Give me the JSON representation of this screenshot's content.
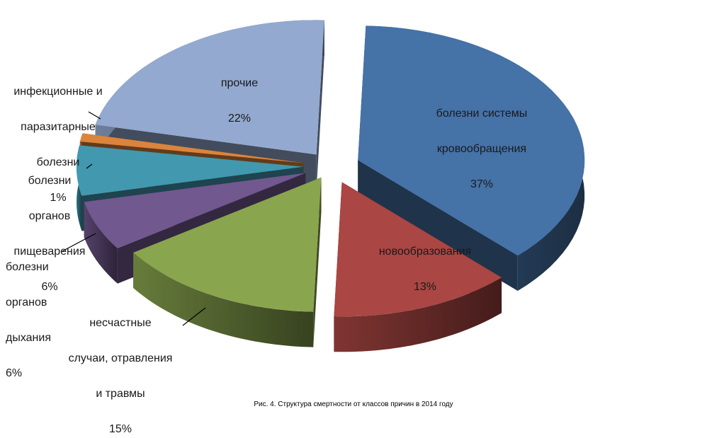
{
  "chart_data": {
    "type": "pie",
    "exploded": true,
    "three_d": true,
    "categories": [
      "болезни системы кровообращения",
      "новообразования",
      "несчастные случаи, отравления и травмы",
      "болезни органов дыхания",
      "болезни органов пищеварения",
      "инфекционные и паразитарные болезни",
      "прочие"
    ],
    "values": [
      37,
      13,
      15,
      6,
      6,
      1,
      22
    ],
    "percent_labels": [
      "37%",
      "13%",
      "15%",
      "6%",
      "6%",
      "1%",
      "22%"
    ],
    "colors": [
      "#4572a7",
      "#aa4643",
      "#89a54e",
      "#71588f",
      "#4198af",
      "#db843d",
      "#93a9cf"
    ],
    "label_lines": [
      [
        "болезни системы",
        "кровообращения"
      ],
      [
        "новообразования"
      ],
      [
        "несчастные",
        "случаи, отравления",
        "и травмы"
      ],
      [
        "болезни",
        "органов",
        "дыхания"
      ],
      [
        "болезни",
        "органов",
        "пищеварения"
      ],
      [
        "инфекционные и",
        "паразитарные",
        "болезни"
      ],
      [
        "прочие"
      ]
    ],
    "legend": "none"
  },
  "caption": "Рис. 4.  Структура смертности от классов причин в 2014 году"
}
